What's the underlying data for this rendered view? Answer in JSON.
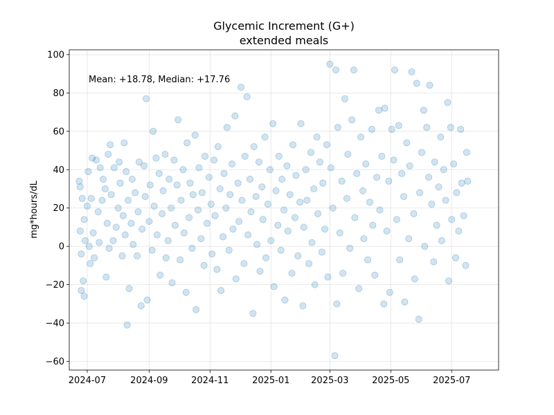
{
  "chart_data": {
    "type": "scatter",
    "title": "Glycemic Increment (G+)",
    "subtitle": "extended meals",
    "xlabel": "",
    "ylabel": "mg*hours/dL",
    "x_type": "date",
    "xlim": [
      "2024-06-13",
      "2025-08-17"
    ],
    "ylim": [
      -64.5,
      102.5
    ],
    "x_ticks": [
      "2024-07-01",
      "2024-09-01",
      "2024-11-01",
      "2025-01-01",
      "2025-03-01",
      "2025-05-01",
      "2025-07-01"
    ],
    "x_tick_labels": [
      "2024-07",
      "2024-09",
      "2024-11",
      "2025-01",
      "2025-03",
      "2025-05",
      "2025-07"
    ],
    "y_ticks": [
      -60,
      -40,
      -20,
      0,
      20,
      40,
      60,
      80,
      100
    ],
    "y_tick_labels": [
      "−60",
      "−40",
      "−20",
      "0",
      "20",
      "40",
      "60",
      "80",
      "100"
    ],
    "grid": true,
    "annotation": "Mean: +18.78, Median: +17.76",
    "series": [
      {
        "color": "#1f77b4",
        "points": [
          [
            "2024-06-23",
            34
          ],
          [
            "2024-06-24",
            31
          ],
          [
            "2024-06-24",
            8
          ],
          [
            "2024-06-25",
            -4
          ],
          [
            "2024-06-25",
            -23
          ],
          [
            "2024-06-26",
            25
          ],
          [
            "2024-06-27",
            -18
          ],
          [
            "2024-06-28",
            -26
          ],
          [
            "2024-06-28",
            14
          ],
          [
            "2024-06-29",
            3
          ],
          [
            "2024-07-01",
            21
          ],
          [
            "2024-07-02",
            39
          ],
          [
            "2024-07-03",
            0
          ],
          [
            "2024-07-04",
            -9
          ],
          [
            "2024-07-05",
            25
          ],
          [
            "2024-07-06",
            46
          ],
          [
            "2024-07-07",
            7
          ],
          [
            "2024-07-08",
            -6
          ],
          [
            "2024-07-10",
            45
          ],
          [
            "2024-07-12",
            18
          ],
          [
            "2024-07-13",
            2
          ],
          [
            "2024-07-14",
            41
          ],
          [
            "2024-07-16",
            24
          ],
          [
            "2024-07-17",
            35
          ],
          [
            "2024-07-19",
            30
          ],
          [
            "2024-07-20",
            -16
          ],
          [
            "2024-07-21",
            12
          ],
          [
            "2024-07-22",
            48
          ],
          [
            "2024-07-23",
            -1
          ],
          [
            "2024-07-24",
            53
          ],
          [
            "2024-07-25",
            27
          ],
          [
            "2024-07-27",
            3
          ],
          [
            "2024-07-28",
            41
          ],
          [
            "2024-07-30",
            10
          ],
          [
            "2024-08-01",
            20
          ],
          [
            "2024-08-02",
            44
          ],
          [
            "2024-08-03",
            33
          ],
          [
            "2024-08-05",
            -5
          ],
          [
            "2024-08-06",
            16
          ],
          [
            "2024-08-07",
            54
          ],
          [
            "2024-08-08",
            6
          ],
          [
            "2024-08-09",
            39
          ],
          [
            "2024-08-10",
            -41
          ],
          [
            "2024-08-11",
            24
          ],
          [
            "2024-08-12",
            -22
          ],
          [
            "2024-08-14",
            12
          ],
          [
            "2024-08-15",
            35
          ],
          [
            "2024-08-16",
            1
          ],
          [
            "2024-08-18",
            28
          ],
          [
            "2024-08-20",
            -5
          ],
          [
            "2024-08-21",
            18
          ],
          [
            "2024-08-22",
            44
          ],
          [
            "2024-08-24",
            -31
          ],
          [
            "2024-08-25",
            9
          ],
          [
            "2024-08-27",
            42
          ],
          [
            "2024-08-28",
            26
          ],
          [
            "2024-08-29",
            77
          ],
          [
            "2024-08-30",
            -28
          ],
          [
            "2024-09-01",
            13
          ],
          [
            "2024-09-02",
            32
          ],
          [
            "2024-09-04",
            -2
          ],
          [
            "2024-09-05",
            60
          ],
          [
            "2024-09-06",
            21
          ],
          [
            "2024-09-08",
            46
          ],
          [
            "2024-09-09",
            6
          ],
          [
            "2024-09-11",
            38
          ],
          [
            "2024-09-12",
            -15
          ],
          [
            "2024-09-14",
            17
          ],
          [
            "2024-09-15",
            29
          ],
          [
            "2024-09-17",
            48
          ],
          [
            "2024-09-18",
            -6
          ],
          [
            "2024-09-20",
            3
          ],
          [
            "2024-09-21",
            35
          ],
          [
            "2024-09-23",
            20
          ],
          [
            "2024-09-24",
            -19
          ],
          [
            "2024-09-26",
            45
          ],
          [
            "2024-09-27",
            11
          ],
          [
            "2024-09-29",
            32
          ],
          [
            "2024-09-30",
            66
          ],
          [
            "2024-10-02",
            -7
          ],
          [
            "2024-10-03",
            24
          ],
          [
            "2024-10-05",
            40
          ],
          [
            "2024-10-06",
            7
          ],
          [
            "2024-10-08",
            -24
          ],
          [
            "2024-10-09",
            54
          ],
          [
            "2024-10-11",
            15
          ],
          [
            "2024-10-12",
            33
          ],
          [
            "2024-10-14",
            -1
          ],
          [
            "2024-10-15",
            27
          ],
          [
            "2024-10-17",
            58
          ],
          [
            "2024-10-18",
            -33
          ],
          [
            "2024-10-20",
            19
          ],
          [
            "2024-10-21",
            41
          ],
          [
            "2024-10-23",
            4
          ],
          [
            "2024-10-24",
            28
          ],
          [
            "2024-10-26",
            -10
          ],
          [
            "2024-10-27",
            47
          ],
          [
            "2024-10-29",
            12
          ],
          [
            "2024-10-31",
            36
          ],
          [
            "2024-11-02",
            22
          ],
          [
            "2024-11-03",
            -4
          ],
          [
            "2024-11-05",
            45
          ],
          [
            "2024-11-06",
            16
          ],
          [
            "2024-11-08",
            -12
          ],
          [
            "2024-11-09",
            52
          ],
          [
            "2024-11-11",
            30
          ],
          [
            "2024-11-12",
            -23
          ],
          [
            "2024-11-14",
            5
          ],
          [
            "2024-11-15",
            38
          ],
          [
            "2024-11-17",
            20
          ],
          [
            "2024-11-18",
            62
          ],
          [
            "2024-11-20",
            -2
          ],
          [
            "2024-11-21",
            27
          ],
          [
            "2024-11-23",
            43
          ],
          [
            "2024-11-24",
            9
          ],
          [
            "2024-11-26",
            68
          ],
          [
            "2024-11-27",
            -17
          ],
          [
            "2024-11-29",
            33
          ],
          [
            "2024-11-30",
            13
          ],
          [
            "2024-12-02",
            83
          ],
          [
            "2024-12-03",
            24
          ],
          [
            "2024-12-05",
            -9
          ],
          [
            "2024-12-06",
            47
          ],
          [
            "2024-12-08",
            78
          ],
          [
            "2024-12-09",
            6
          ],
          [
            "2024-12-11",
            35
          ],
          [
            "2024-12-12",
            18
          ],
          [
            "2024-12-14",
            -35
          ],
          [
            "2024-12-15",
            52
          ],
          [
            "2024-12-17",
            26
          ],
          [
            "2024-12-18",
            1
          ],
          [
            "2024-12-20",
            44
          ],
          [
            "2024-12-21",
            -13
          ],
          [
            "2024-12-23",
            31
          ],
          [
            "2024-12-24",
            14
          ],
          [
            "2024-12-26",
            57
          ],
          [
            "2024-12-27",
            -6
          ],
          [
            "2024-12-29",
            22
          ],
          [
            "2024-12-31",
            40
          ],
          [
            "2025-01-01",
            3
          ],
          [
            "2025-01-03",
            64
          ],
          [
            "2025-01-04",
            -21
          ],
          [
            "2025-01-06",
            29
          ],
          [
            "2025-01-08",
            11
          ],
          [
            "2025-01-09",
            47
          ],
          [
            "2025-01-11",
            -2
          ],
          [
            "2025-01-12",
            35
          ],
          [
            "2025-01-14",
            19
          ],
          [
            "2025-01-15",
            -28
          ],
          [
            "2025-01-17",
            42
          ],
          [
            "2025-01-18",
            8
          ],
          [
            "2025-01-20",
            27
          ],
          [
            "2025-01-22",
            -14
          ],
          [
            "2025-01-23",
            53
          ],
          [
            "2025-01-25",
            15
          ],
          [
            "2025-01-26",
            37
          ],
          [
            "2025-01-28",
            -5
          ],
          [
            "2025-01-30",
            23
          ],
          [
            "2025-01-31",
            64
          ],
          [
            "2025-02-02",
            -31
          ],
          [
            "2025-02-03",
            10
          ],
          [
            "2025-02-05",
            40
          ],
          [
            "2025-02-06",
            24
          ],
          [
            "2025-02-08",
            -9
          ],
          [
            "2025-02-10",
            49
          ],
          [
            "2025-02-11",
            2
          ],
          [
            "2025-02-13",
            30
          ],
          [
            "2025-02-14",
            -20
          ],
          [
            "2025-02-16",
            57
          ],
          [
            "2025-02-17",
            17
          ],
          [
            "2025-02-19",
            44
          ],
          [
            "2025-02-21",
            -3
          ],
          [
            "2025-02-22",
            33
          ],
          [
            "2025-02-24",
            9
          ],
          [
            "2025-02-26",
            53
          ],
          [
            "2025-02-27",
            -16
          ],
          [
            "2025-03-01",
            95
          ],
          [
            "2025-03-02",
            41
          ],
          [
            "2025-03-04",
            20
          ],
          [
            "2025-03-06",
            -57
          ],
          [
            "2025-03-07",
            92
          ],
          [
            "2025-03-08",
            -30
          ],
          [
            "2025-03-09",
            62
          ],
          [
            "2025-03-11",
            7
          ],
          [
            "2025-03-13",
            34
          ],
          [
            "2025-03-14",
            -14
          ],
          [
            "2025-03-16",
            77
          ],
          [
            "2025-03-18",
            25
          ],
          [
            "2025-03-19",
            48
          ],
          [
            "2025-03-21",
            -1
          ],
          [
            "2025-03-23",
            66
          ],
          [
            "2025-03-25",
            92
          ],
          [
            "2025-03-26",
            15
          ],
          [
            "2025-03-28",
            38
          ],
          [
            "2025-03-30",
            -22
          ],
          [
            "2025-04-01",
            57
          ],
          [
            "2025-04-03",
            29
          ],
          [
            "2025-04-04",
            4
          ],
          [
            "2025-04-06",
            43
          ],
          [
            "2025-04-08",
            -7
          ],
          [
            "2025-04-10",
            23
          ],
          [
            "2025-04-12",
            61
          ],
          [
            "2025-04-13",
            11
          ],
          [
            "2025-04-15",
            -15
          ],
          [
            "2025-04-17",
            36
          ],
          [
            "2025-04-19",
            71
          ],
          [
            "2025-04-20",
            19
          ],
          [
            "2025-04-22",
            47
          ],
          [
            "2025-04-24",
            -30
          ],
          [
            "2025-04-25",
            72
          ],
          [
            "2025-04-27",
            8
          ],
          [
            "2025-04-29",
            34
          ],
          [
            "2025-04-30",
            -24
          ],
          [
            "2025-05-02",
            61
          ],
          [
            "2025-05-04",
            45
          ],
          [
            "2025-05-05",
            92
          ],
          [
            "2025-05-07",
            14
          ],
          [
            "2025-05-09",
            63
          ],
          [
            "2025-05-10",
            -7
          ],
          [
            "2025-05-12",
            38
          ],
          [
            "2025-05-14",
            26
          ],
          [
            "2025-05-15",
            -29
          ],
          [
            "2025-05-17",
            54
          ],
          [
            "2025-05-19",
            4
          ],
          [
            "2025-05-20",
            42
          ],
          [
            "2025-05-22",
            91
          ],
          [
            "2025-05-24",
            17
          ],
          [
            "2025-05-25",
            -17
          ],
          [
            "2025-05-27",
            85
          ],
          [
            "2025-05-29",
            -38
          ],
          [
            "2025-05-30",
            28
          ],
          [
            "2025-06-01",
            49
          ],
          [
            "2025-06-03",
            71
          ],
          [
            "2025-06-04",
            0
          ],
          [
            "2025-06-06",
            62
          ],
          [
            "2025-06-08",
            36
          ],
          [
            "2025-06-09",
            84
          ],
          [
            "2025-06-11",
            22
          ],
          [
            "2025-06-13",
            -8
          ],
          [
            "2025-06-14",
            44
          ],
          [
            "2025-06-16",
            11
          ],
          [
            "2025-06-18",
            31
          ],
          [
            "2025-06-20",
            57
          ],
          [
            "2025-06-21",
            3
          ],
          [
            "2025-06-23",
            40
          ],
          [
            "2025-06-25",
            24
          ],
          [
            "2025-06-27",
            75
          ],
          [
            "2025-06-28",
            -18
          ],
          [
            "2025-06-30",
            62
          ],
          [
            "2025-07-01",
            14
          ],
          [
            "2025-07-03",
            43
          ],
          [
            "2025-07-05",
            -6
          ],
          [
            "2025-07-06",
            28
          ],
          [
            "2025-07-08",
            8
          ],
          [
            "2025-07-10",
            61
          ],
          [
            "2025-07-11",
            33
          ],
          [
            "2025-07-13",
            16
          ],
          [
            "2025-07-15",
            -10
          ],
          [
            "2025-07-16",
            49
          ],
          [
            "2025-07-17",
            34
          ]
        ]
      }
    ]
  }
}
